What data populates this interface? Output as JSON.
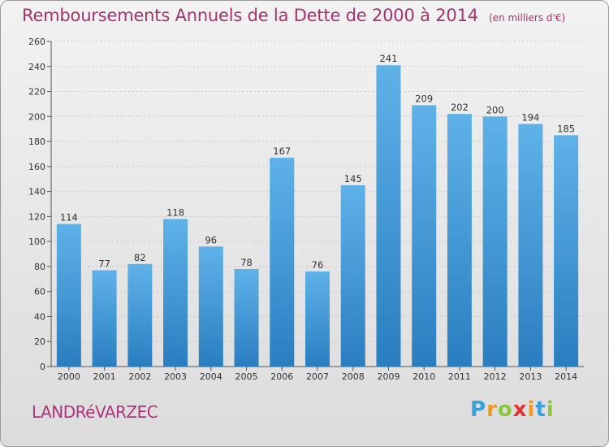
{
  "title": "Remboursements Annuels de la Dette de 2000 à 2014",
  "unit": "(en milliers d'€)",
  "commune": "LANDRéVARZEC",
  "logo": {
    "letters": [
      "P",
      "r",
      "o",
      "x",
      "i",
      "t",
      "i"
    ],
    "colors": [
      "#3aa0d8",
      "#f39a1e",
      "#8cc63f",
      "#e3342f",
      "#f39a1e",
      "#3aa0d8",
      "#8cc63f"
    ]
  },
  "colors": {
    "bar_top": "#5fb2e8",
    "bar_bottom": "#2a7ec0",
    "title": "#a6336b",
    "grid": "#c8c8c8"
  },
  "chart_data": {
    "type": "bar",
    "categories": [
      "2000",
      "2001",
      "2002",
      "2003",
      "2004",
      "2005",
      "2006",
      "2007",
      "2008",
      "2009",
      "2010",
      "2011",
      "2012",
      "2013",
      "2014"
    ],
    "values": [
      114,
      77,
      82,
      118,
      96,
      78,
      167,
      76,
      145,
      241,
      209,
      202,
      200,
      194,
      185
    ],
    "ylim": [
      0,
      260
    ],
    "yticks": [
      0,
      20,
      40,
      60,
      80,
      100,
      120,
      140,
      160,
      180,
      200,
      220,
      240,
      260
    ],
    "grid": true
  }
}
